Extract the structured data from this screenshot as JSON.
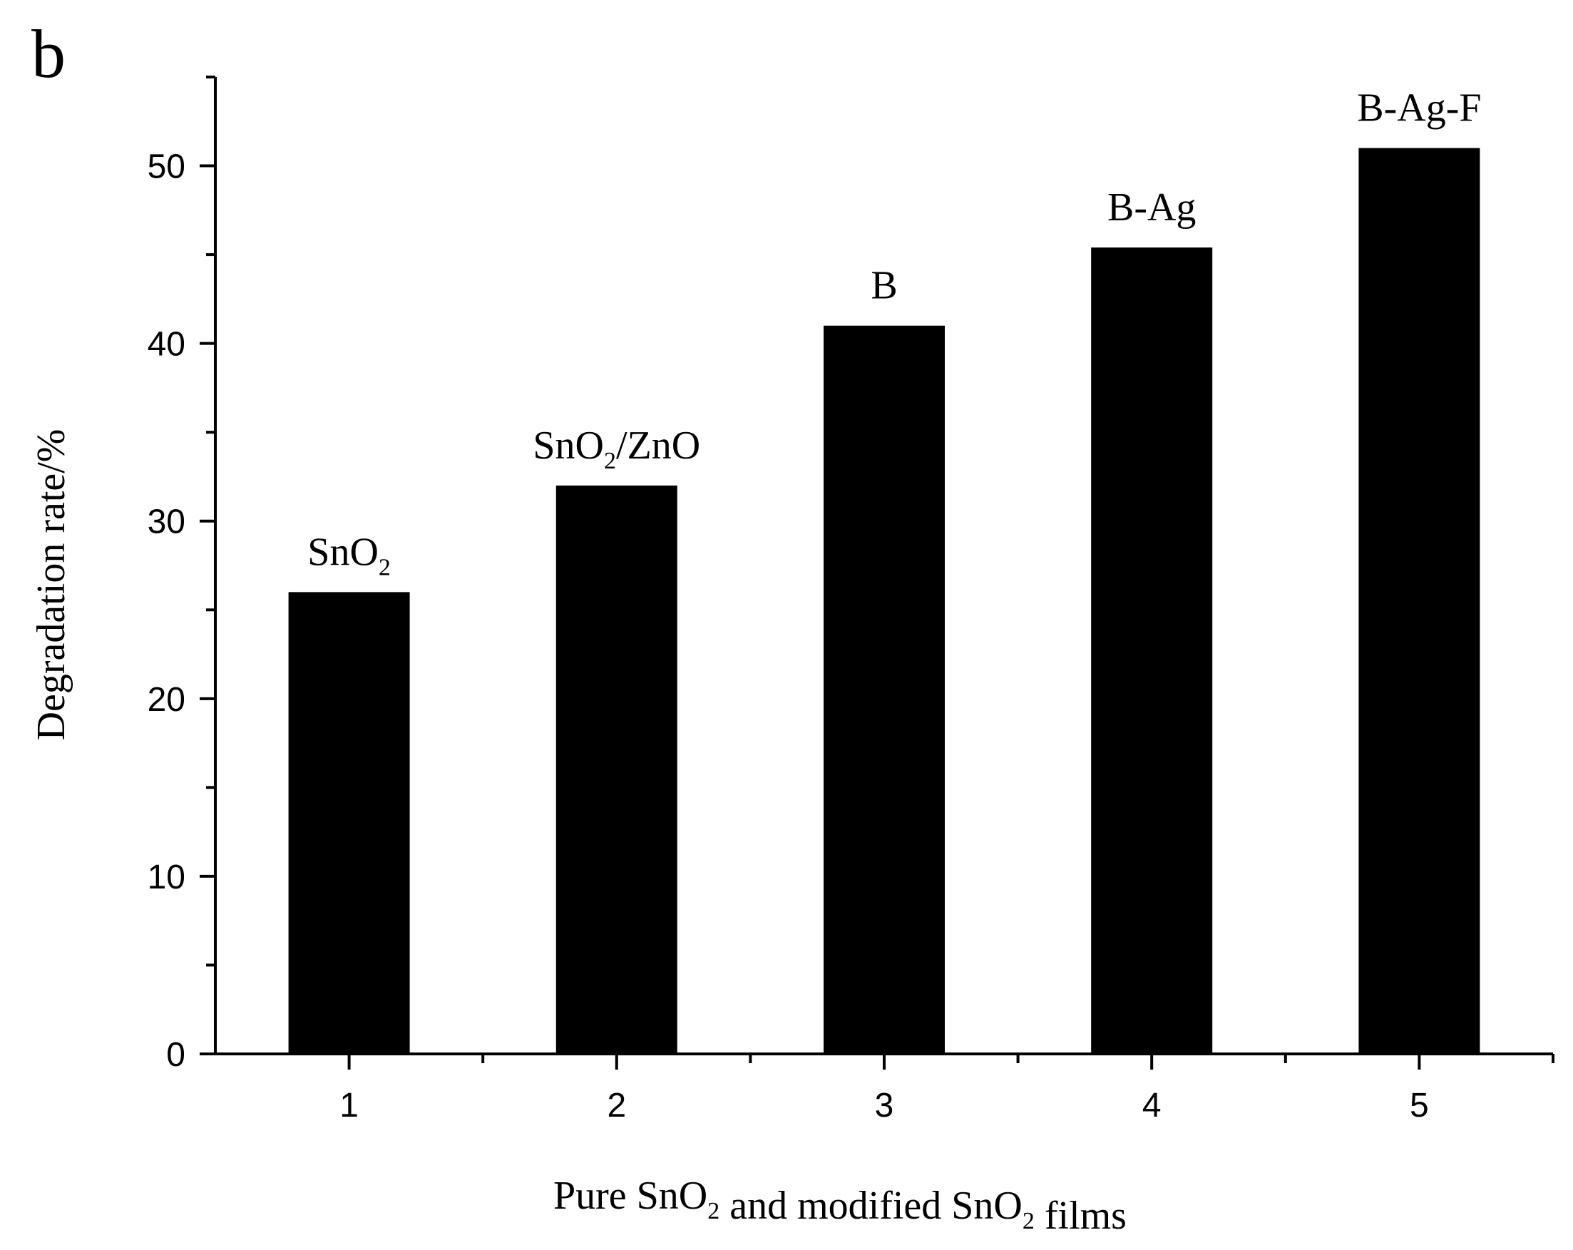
{
  "panel_label": "b",
  "chart_data": {
    "type": "bar",
    "categories": [
      "1",
      "2",
      "3",
      "4",
      "5"
    ],
    "series": [
      {
        "values": [
          26,
          32,
          41,
          45.4,
          51
        ],
        "color": "#000000"
      }
    ],
    "bar_labels": [
      {
        "text": "SnO",
        "sub": "2",
        "after": ""
      },
      {
        "text": "SnO",
        "sub": "2",
        "after": "/ZnO"
      },
      {
        "text": "B",
        "sub": "",
        "after": ""
      },
      {
        "text": "B-Ag",
        "sub": "",
        "after": ""
      },
      {
        "text": "B-Ag-F",
        "sub": "",
        "after": ""
      }
    ],
    "xlabel_parts": [
      {
        "text": "Pure SnO",
        "sub": "2"
      },
      {
        "text": " and modified SnO",
        "sub": "2"
      },
      {
        "text": " films",
        "sub": ""
      }
    ],
    "ylabel": "Degradation rate/%",
    "xlim": [
      0.5,
      5.5
    ],
    "ylim": [
      0,
      55
    ],
    "y_ticks": [
      0,
      10,
      20,
      30,
      40,
      50
    ],
    "y_minor_ticks": [
      5,
      15,
      25,
      35,
      45,
      55
    ],
    "x_ticks": [
      1,
      2,
      3,
      4,
      5
    ],
    "x_minor_ticks": [
      1.5,
      2.5,
      3.5,
      4.5,
      5.5
    ],
    "grid": false,
    "legend": "none"
  }
}
